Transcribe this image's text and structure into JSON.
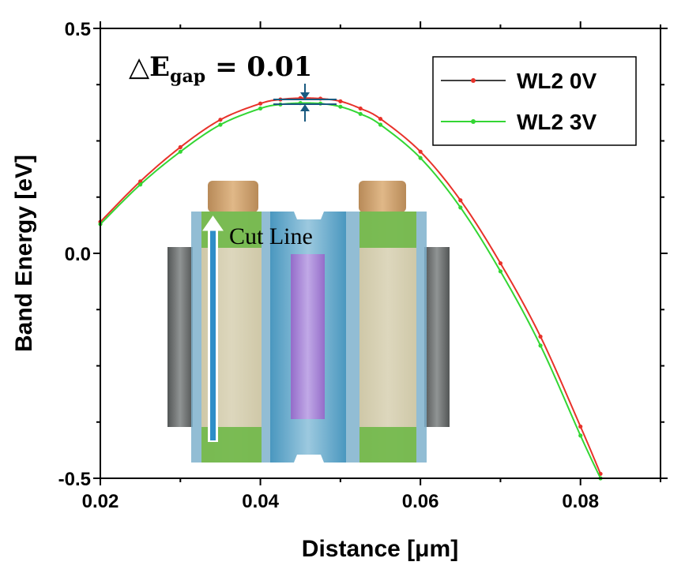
{
  "chart_data": {
    "type": "line",
    "title": "",
    "xlabel": "Distance [μm]",
    "ylabel": "Band Energy [eV]",
    "xlim": [
      0.02,
      0.09
    ],
    "ylim": [
      -0.5,
      0.5
    ],
    "x_ticks": [
      "0.02",
      "0.04",
      "0.06",
      "0.08"
    ],
    "y_ticks": [
      "0.5",
      "0.0",
      "-0.5"
    ],
    "grid": false,
    "legend_position": "top-right",
    "series": [
      {
        "name": "WL2 0V",
        "color": "#e8322a",
        "x": [
          0.02,
          0.025,
          0.03,
          0.035,
          0.04,
          0.0425,
          0.045,
          0.0475,
          0.05,
          0.0525,
          0.055,
          0.06,
          0.065,
          0.07,
          0.075,
          0.08,
          0.0825
        ],
        "y": [
          0.07,
          0.16,
          0.236,
          0.297,
          0.333,
          0.342,
          0.345,
          0.344,
          0.338,
          0.322,
          0.299,
          0.226,
          0.118,
          -0.022,
          -0.185,
          -0.385,
          -0.49
        ]
      },
      {
        "name": "WL2 3V",
        "color": "#33d633",
        "x": [
          0.02,
          0.025,
          0.03,
          0.035,
          0.04,
          0.0425,
          0.045,
          0.0475,
          0.05,
          0.0525,
          0.055,
          0.06,
          0.065,
          0.07,
          0.075,
          0.08,
          0.0825
        ],
        "y": [
          0.065,
          0.153,
          0.226,
          0.286,
          0.322,
          0.331,
          0.334,
          0.333,
          0.326,
          0.31,
          0.286,
          0.212,
          0.102,
          -0.04,
          -0.205,
          -0.405,
          -0.5
        ]
      }
    ],
    "annotations": {
      "delta_label": "△E",
      "delta_sub": "gap",
      "delta_value": "= 0.01",
      "cut_line_label": "Cut Line"
    }
  }
}
